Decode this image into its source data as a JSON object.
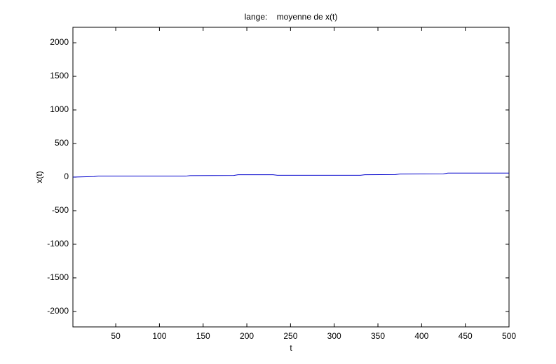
{
  "chart_data": {
    "type": "line",
    "title": "lange:    moyenne de x(t)",
    "x_label": "t",
    "y_label": "x(t)",
    "x": [
      1,
      25,
      30,
      130,
      135,
      185,
      190,
      230,
      235,
      330,
      335,
      370,
      375,
      425,
      430,
      500
    ],
    "series": [
      {
        "name": "moyenne",
        "color": "#0000cc",
        "values": [
          0,
          8,
          15,
          15,
          22,
          25,
          35,
          35,
          28,
          28,
          35,
          38,
          45,
          48,
          60,
          60
        ]
      }
    ],
    "xlim": [
      1,
      500
    ],
    "ylim": [
      -2230,
      2230
    ],
    "xticks": [
      50,
      100,
      150,
      200,
      250,
      300,
      350,
      400,
      450,
      500
    ],
    "yticks": [
      -2000,
      -1500,
      -1000,
      -500,
      0,
      500,
      1000,
      1500,
      2000
    ]
  }
}
